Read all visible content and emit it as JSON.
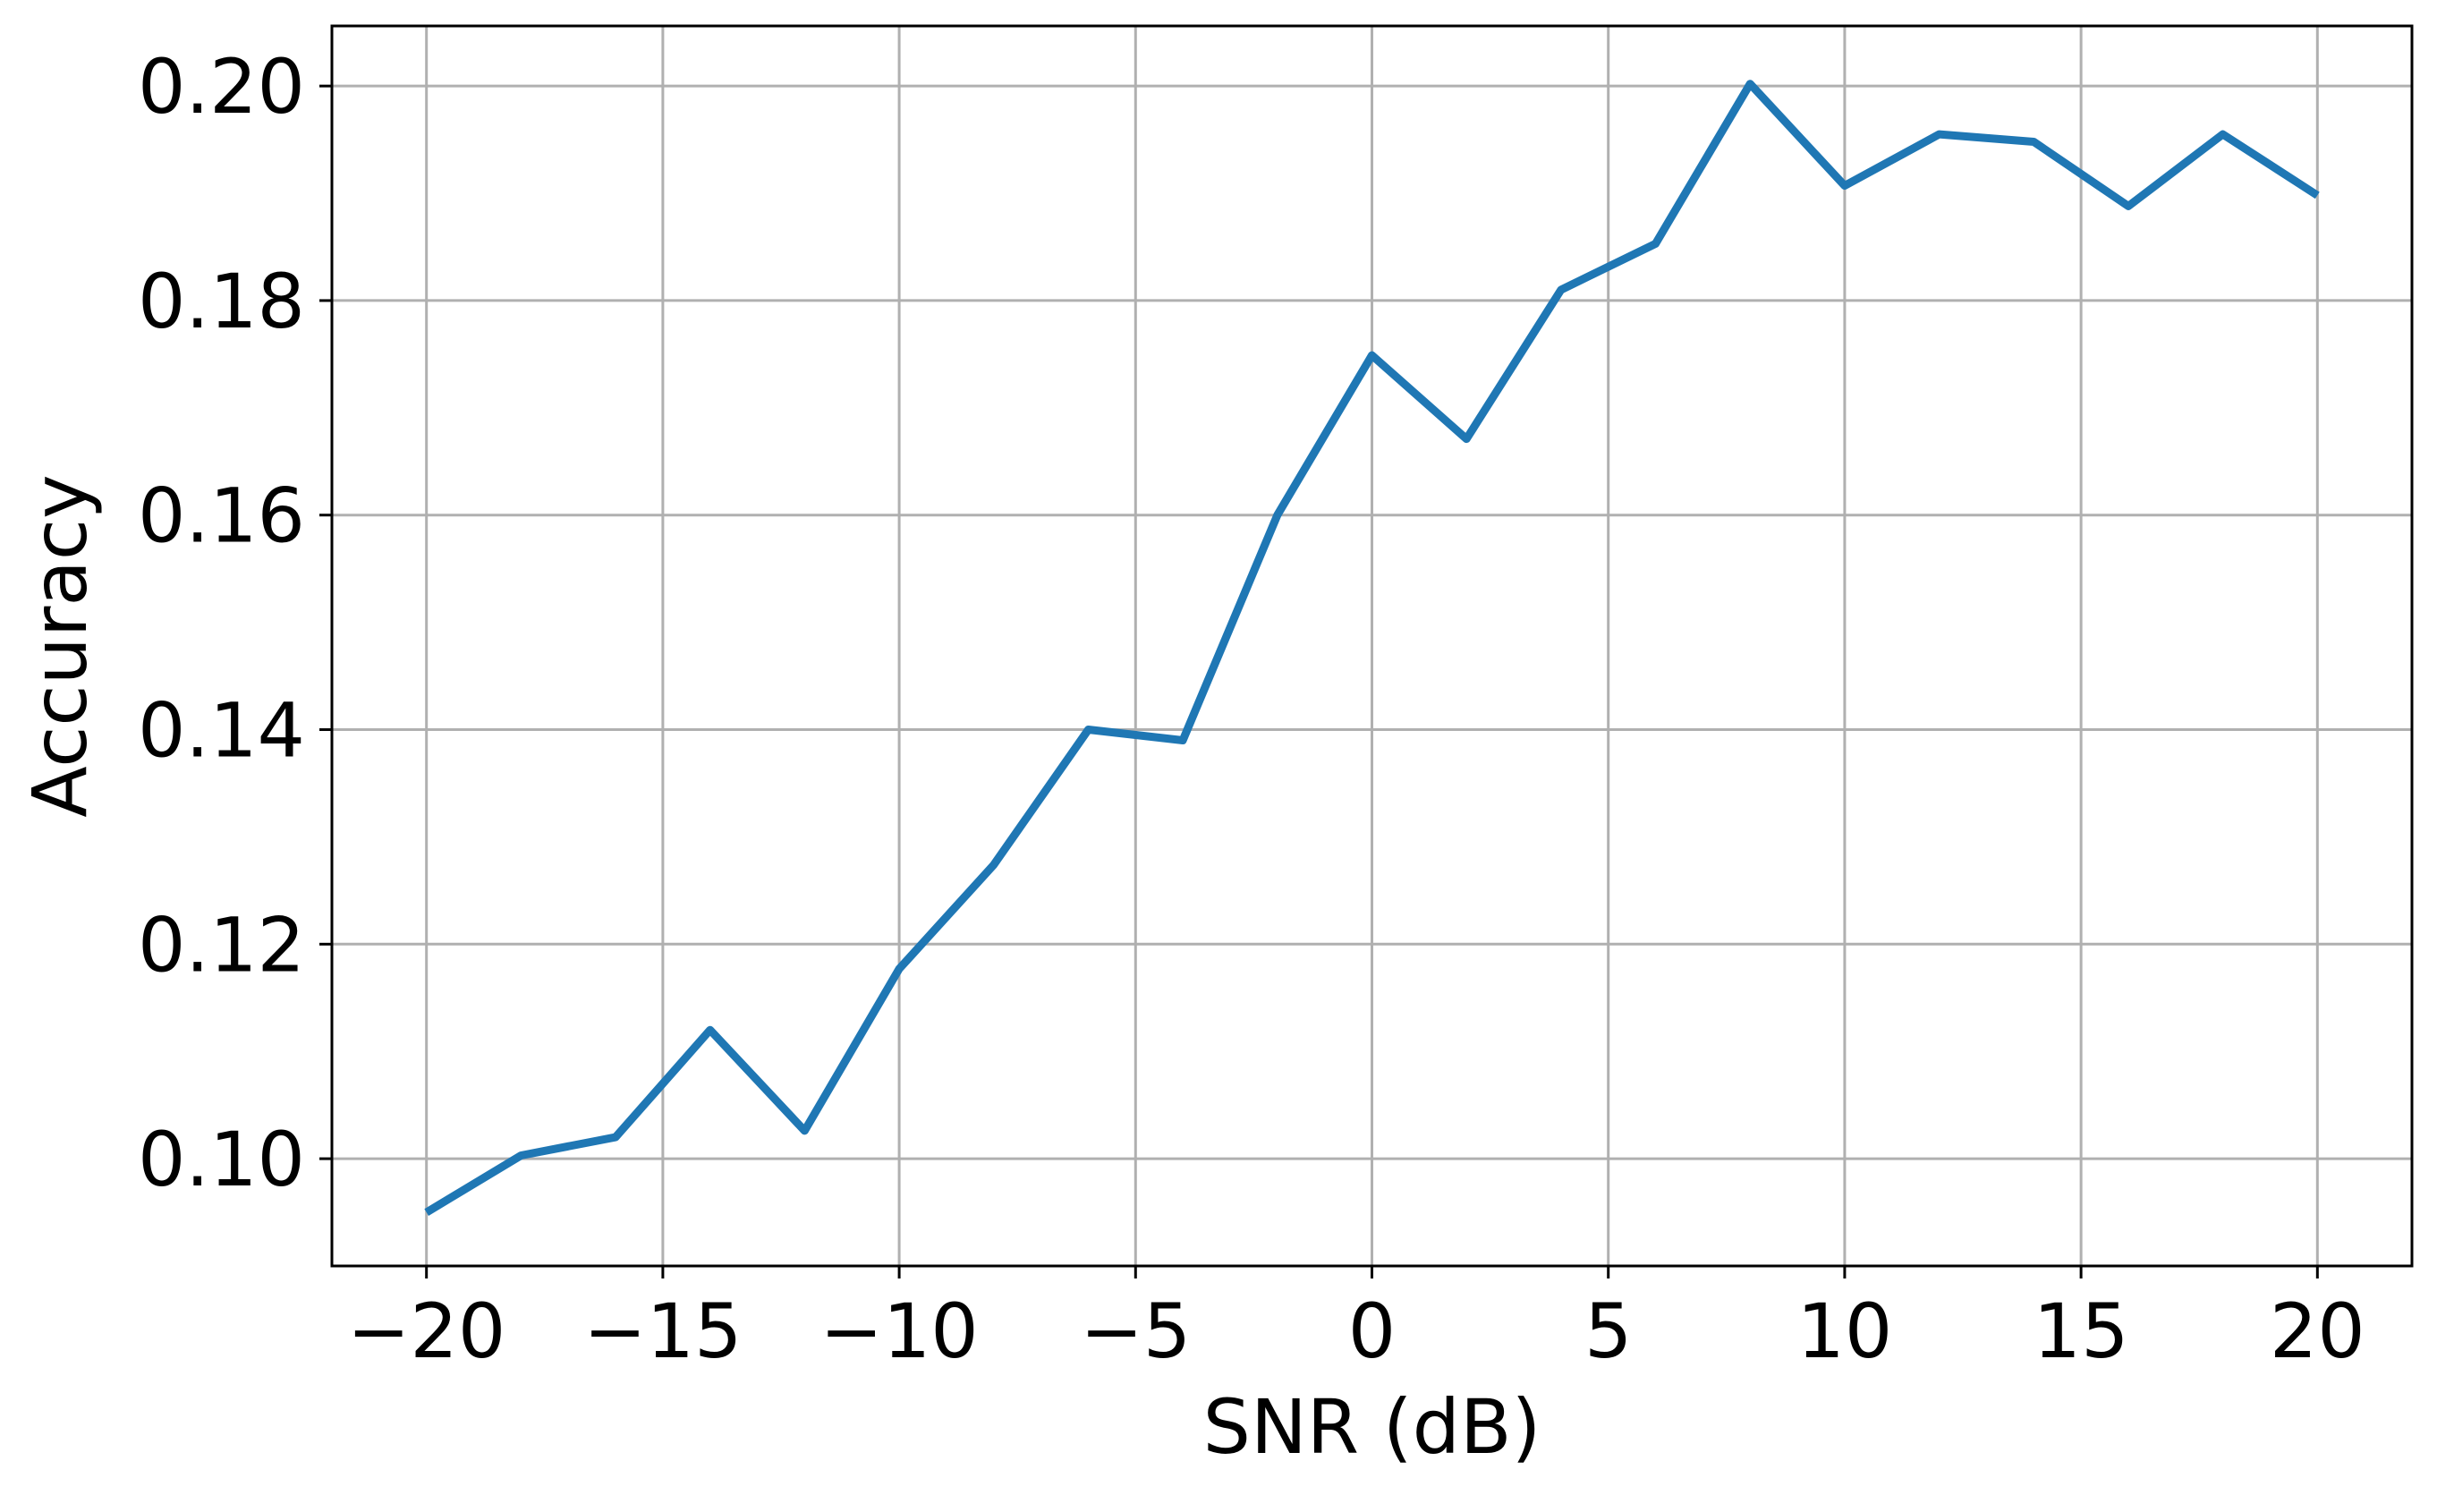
{
  "chart_data": {
    "type": "line",
    "title": "",
    "xlabel": "SNR (dB)",
    "ylabel": "Accuracy",
    "xlim": [
      -22,
      22
    ],
    "ylim": [
      0.09,
      0.2056
    ],
    "grid": true,
    "legend": "none",
    "xticks": [
      -20,
      -15,
      -10,
      -5,
      0,
      5,
      10,
      15,
      20
    ],
    "xtick_labels": [
      "−20",
      "−15",
      "−10",
      "−5",
      "0",
      "5",
      "10",
      "15",
      "20"
    ],
    "yticks": [
      0.1,
      0.12,
      0.14,
      0.16,
      0.18,
      0.2
    ],
    "ytick_labels": [
      "0.10",
      "0.12",
      "0.14",
      "0.16",
      "0.18",
      "0.20"
    ],
    "series": [
      {
        "color": "#1f77b4",
        "x": [
          -20,
          -18,
          -16,
          -14,
          -12,
          -10,
          -8,
          -6,
          -4,
          -2,
          0,
          2,
          4,
          6,
          8,
          10,
          12,
          14,
          16,
          18,
          20
        ],
        "y": [
          0.095,
          0.1003,
          0.102,
          0.112,
          0.1026,
          0.1177,
          0.1274,
          0.14,
          0.139,
          0.16,
          0.1749,
          0.1671,
          0.181,
          0.1853,
          0.2002,
          0.1907,
          0.1955,
          0.1948,
          0.1888,
          0.1955,
          0.1898
        ]
      }
    ]
  }
}
